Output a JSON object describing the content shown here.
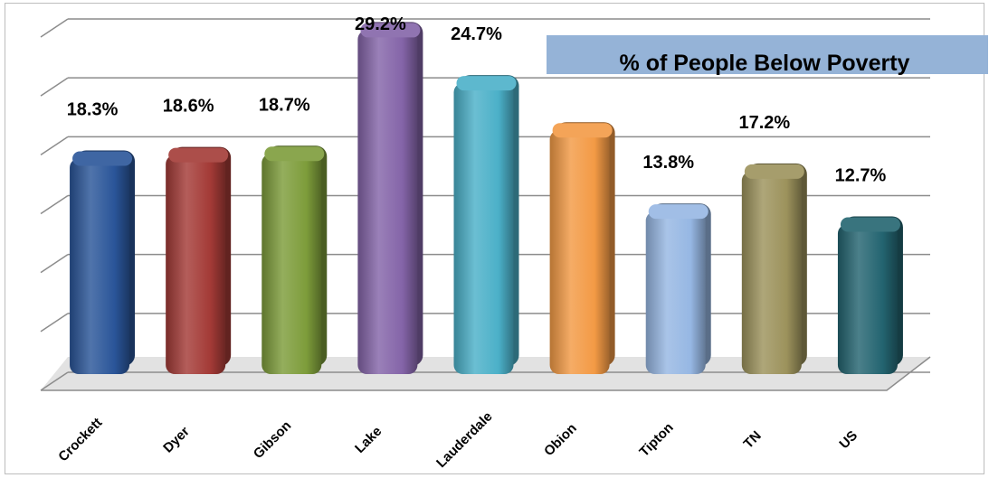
{
  "chart_data": {
    "type": "bar",
    "title": "% of People Below Poverty",
    "categories": [
      "Crockett",
      "Dyer",
      "Gibson",
      "Lake",
      "Lauderdale",
      "Obion",
      "Tipton",
      "TN",
      "US"
    ],
    "values": [
      18.3,
      18.6,
      18.7,
      29.2,
      24.7,
      20.7,
      13.8,
      17.2,
      12.7
    ],
    "data_labels": [
      "18.3%",
      "18.6%",
      "18.7%",
      "29.2%",
      "24.7%",
      "",
      "13.8%",
      "17.2%",
      "12.7%"
    ],
    "colors": [
      "#2a5599",
      "#a33a36",
      "#7d9c3a",
      "#8464a8",
      "#4bb0c8",
      "#f39a45",
      "#96b7e3",
      "#9c925c",
      "#236470"
    ],
    "ylim": [
      0,
      30
    ],
    "grid": true,
    "legend": "none",
    "style": "3d-cylinder"
  }
}
